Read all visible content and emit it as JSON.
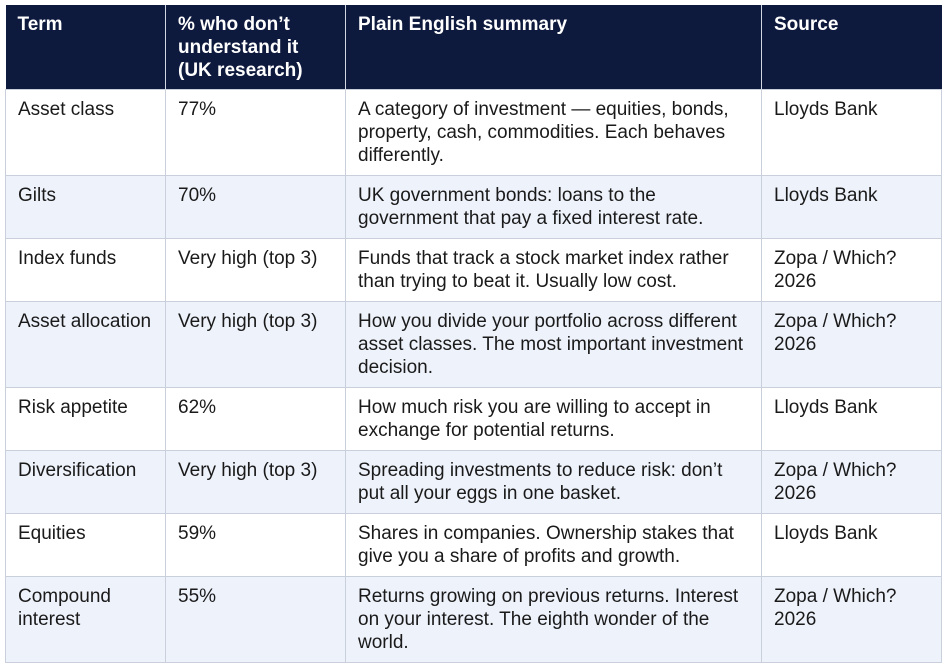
{
  "table": {
    "headers": [
      "Term",
      "% who don’t understand it (UK research)",
      "Plain English summary",
      "Source"
    ],
    "rows": [
      {
        "term": "Asset class",
        "percent": "77%",
        "summary": "A category of investment — equities, bonds, property, cash, commodities. Each behaves differently.",
        "source": "Lloyds Bank"
      },
      {
        "term": "Gilts",
        "percent": "70%",
        "summary": "UK government bonds: loans to the government that pay a fixed interest rate.",
        "source": "Lloyds Bank"
      },
      {
        "term": "Index funds",
        "percent": "Very high (top 3)",
        "summary": "Funds that track a stock market index rather than trying to beat it. Usually low cost.",
        "source": "Zopa / Which? 2026"
      },
      {
        "term": "Asset allocation",
        "percent": "Very high (top 3)",
        "summary": "How you divide your portfolio across different asset classes. The most important investment decision.",
        "source": "Zopa / Which? 2026"
      },
      {
        "term": "Risk appetite",
        "percent": "62%",
        "summary": "How much risk you are willing to accept in exchange for potential returns.",
        "source": "Lloyds Bank"
      },
      {
        "term": "Diversification",
        "percent": "Very high (top 3)",
        "summary": "Spreading investments to reduce risk: don’t put all your eggs in one basket.",
        "source": "Zopa / Which? 2026"
      },
      {
        "term": "Equities",
        "percent": "59%",
        "summary": "Shares in companies. Ownership stakes that give you a share of profits and growth.",
        "source": "Lloyds Bank"
      },
      {
        "term": "Compound interest",
        "percent": "55%",
        "summary": "Returns growing on previous returns. Interest on your interest. The eighth wonder of the world.",
        "source": "Zopa / Which? 2026"
      }
    ]
  }
}
